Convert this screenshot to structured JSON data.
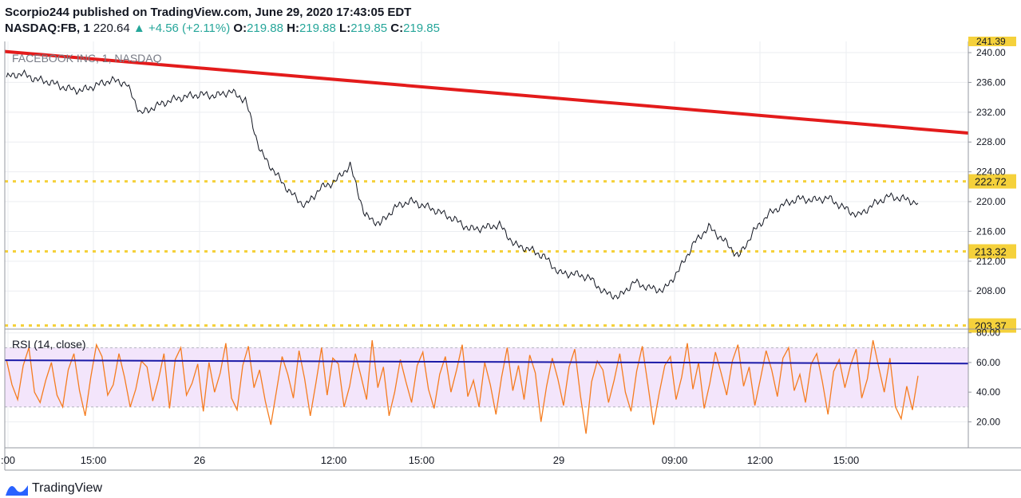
{
  "header": {
    "publisher": "Scorpio244 published on TradingView.com, June 29, 2020 17:43:05 EDT"
  },
  "quote": {
    "symbol": "NASDAQ:FB, 1",
    "last": "220.64",
    "arrow": "▲",
    "change": "+4.56 (+2.11%)",
    "o_label": "O:",
    "o_value": "219.88",
    "h_label": "H:",
    "h_value": "219.88",
    "l_label": "L:",
    "l_value": "219.85",
    "c_label": "C:",
    "c_value": "219.85"
  },
  "brand": {
    "name": "TradingView",
    "icon": "tradingview-logo-icon"
  },
  "colors": {
    "price": "#131722",
    "trendline": "#e31b1b",
    "levels": "#f5d13b",
    "rsi": "#f57c1f",
    "rsi_trend": "#1a1aa8",
    "rsi_band": "#f3e5fb",
    "grid": "#ebedf1"
  },
  "chart_data": [
    {
      "type": "line",
      "title": "FACEBOOK INC, 1, NASDAQ",
      "x_ticks": [
        ":00",
        "15:00",
        "26",
        "12:00",
        "15:00",
        "29",
        "09:00",
        "12:00",
        "15:00"
      ],
      "y_ticks": [
        "240.00",
        "236.00",
        "232.00",
        "228.00",
        "224.00",
        "220.00",
        "216.00",
        "212.00",
        "208.00"
      ],
      "ylim": [
        203.0,
        241.5
      ],
      "series": [
        {
          "values": [
            236.7,
            237.2,
            236.4,
            236.0,
            235.2,
            234.9,
            235.6,
            236.3,
            235.9,
            231.8,
            232.8,
            233.6,
            234.1,
            234.4,
            234.2,
            234.8,
            233.6,
            226.7,
            223.8,
            221.2,
            219.4,
            221.8,
            222.7,
            224.9,
            218.1,
            217.0,
            219.2,
            220.1,
            219.4,
            218.6,
            217.6,
            216.3,
            216.5,
            216.9,
            214.2,
            213.6,
            212.6,
            210.4,
            210.3,
            209.8,
            207.8,
            207.2,
            209.2,
            208.4,
            208.1,
            210.8,
            214.4,
            216.6,
            214.8,
            212.6,
            216.0,
            218.3,
            219.6,
            220.4,
            220.2,
            220.5,
            219.2,
            218.1,
            219.6,
            220.7,
            220.4,
            219.8
          ]
        }
      ],
      "levels": [
        {
          "value": 222.72,
          "label": "222.72"
        },
        {
          "value": 213.32,
          "label": "213.32"
        },
        {
          "value": 203.37,
          "label": "203.37"
        }
      ],
      "trendline": {
        "start": 240.15,
        "end": 229.2
      },
      "top_label": "241.39"
    },
    {
      "type": "line",
      "title": "RSI (14, close)",
      "y_ticks": [
        "80.00",
        "60.00",
        "40.00",
        "20.00"
      ],
      "ylim": [
        3,
        82
      ],
      "band": [
        30,
        70
      ],
      "trendline": {
        "start": 61.5,
        "end": 59.3
      },
      "series": [
        {
          "values": [
            62,
            45,
            35,
            58,
            70,
            40,
            33,
            48,
            60,
            38,
            30,
            55,
            66,
            41,
            24,
            50,
            72,
            64,
            38,
            45,
            66,
            50,
            30,
            42,
            61,
            57,
            34,
            48,
            66,
            29,
            62,
            70,
            38,
            46,
            59,
            27,
            60,
            40,
            53,
            73,
            36,
            28,
            58,
            71,
            43,
            55,
            34,
            18,
            41,
            64,
            52,
            36,
            68,
            49,
            24,
            46,
            70,
            38,
            63,
            59,
            30,
            44,
            66,
            51,
            35,
            75,
            43,
            57,
            24,
            40,
            62,
            47,
            33,
            58,
            67,
            42,
            29,
            52,
            64,
            40,
            55,
            72,
            37,
            48,
            30,
            60,
            45,
            25,
            50,
            70,
            41,
            58,
            35,
            65,
            53,
            20,
            44,
            63,
            49,
            31,
            57,
            69,
            38,
            12,
            47,
            61,
            55,
            33,
            48,
            66,
            40,
            27,
            54,
            71,
            45,
            18,
            39,
            58,
            64,
            35,
            50,
            73,
            42,
            60,
            29,
            46,
            67,
            53,
            38,
            61,
            72,
            44,
            57,
            31,
            49,
            68,
            55,
            37,
            63,
            70,
            41,
            52,
            33,
            59,
            66,
            47,
            25,
            54,
            62,
            43,
            58,
            69,
            36,
            49,
            75,
            57,
            40,
            63,
            30,
            22,
            44,
            28,
            51
          ]
        }
      ],
      "y_label": "60.00"
    }
  ]
}
